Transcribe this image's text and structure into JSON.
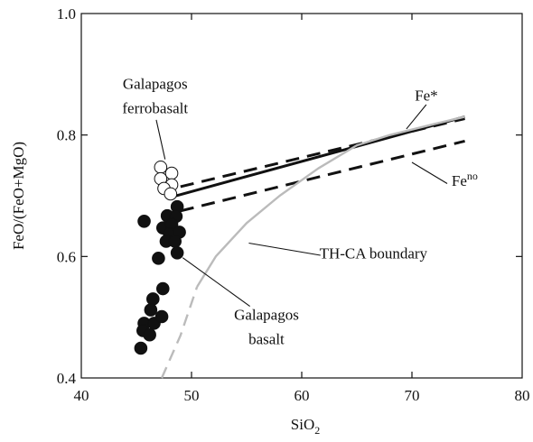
{
  "chart_data": {
    "type": "scatter",
    "title": "",
    "xlabel_base": "SiO",
    "xlabel_sub": "2",
    "ylabel": "FeO/(FeO+MgO)",
    "xlim": [
      40,
      80
    ],
    "ylim": [
      0.4,
      1.0
    ],
    "xticks": [
      40,
      50,
      60,
      70,
      80
    ],
    "yticks": [
      0.4,
      0.6,
      0.8,
      1.0
    ],
    "xtick_labels": [
      "40",
      "50",
      "60",
      "70",
      "80"
    ],
    "ytick_labels": [
      "0.4",
      "0.6",
      "0.8",
      "1.0"
    ],
    "grid": false,
    "series": [
      {
        "name": "Galapagos ferrobasalt",
        "marker": "open-circle",
        "color": "#111111",
        "points": [
          [
            47.2,
            0.747
          ],
          [
            48.2,
            0.737
          ],
          [
            47.2,
            0.728
          ],
          [
            48.2,
            0.718
          ],
          [
            47.5,
            0.712
          ],
          [
            48.1,
            0.703
          ]
        ]
      },
      {
        "name": "Galapagos basalt",
        "marker": "filled-circle",
        "color": "#111111",
        "points": [
          [
            45.7,
            0.658
          ],
          [
            47.8,
            0.667
          ],
          [
            48.7,
            0.682
          ],
          [
            48.6,
            0.666
          ],
          [
            47.4,
            0.647
          ],
          [
            48.2,
            0.653
          ],
          [
            48.0,
            0.637
          ],
          [
            48.9,
            0.64
          ],
          [
            47.7,
            0.625
          ],
          [
            48.5,
            0.625
          ],
          [
            48.7,
            0.606
          ],
          [
            47.0,
            0.597
          ],
          [
            47.4,
            0.547
          ],
          [
            46.5,
            0.53
          ],
          [
            46.3,
            0.512
          ],
          [
            45.7,
            0.49
          ],
          [
            46.6,
            0.49
          ],
          [
            45.6,
            0.478
          ],
          [
            46.2,
            0.471
          ],
          [
            47.3,
            0.501
          ],
          [
            45.4,
            0.449
          ]
        ]
      }
    ],
    "lines": [
      {
        "name": "Fe*",
        "style": "solid",
        "color": "#111111",
        "points": [
          [
            48.0,
            0.697
          ],
          [
            74.8,
            0.83
          ]
        ]
      },
      {
        "name": "Fe*-upper-dashed",
        "style": "dashed",
        "color": "#111111",
        "points": [
          [
            49.0,
            0.715
          ],
          [
            74.8,
            0.827
          ]
        ]
      },
      {
        "name": "Fe-no",
        "style": "dashed",
        "color": "#111111",
        "points": [
          [
            49.0,
            0.675
          ],
          [
            74.8,
            0.79
          ]
        ]
      },
      {
        "name": "TH-CA boundary",
        "style": "solid",
        "color": "#bbbbbb",
        "points": [
          [
            50.5,
            0.55
          ],
          [
            52.2,
            0.6
          ],
          [
            55.0,
            0.655
          ],
          [
            58.0,
            0.7
          ],
          [
            61.5,
            0.745
          ],
          [
            65.0,
            0.783
          ],
          [
            68.0,
            0.8
          ],
          [
            72.0,
            0.818
          ],
          [
            74.8,
            0.83
          ]
        ]
      },
      {
        "name": "TH-CA boundary extension",
        "style": "dashed",
        "color": "#bbbbbb",
        "points": [
          [
            47.3,
            0.4
          ],
          [
            49.0,
            0.47
          ],
          [
            50.5,
            0.55
          ]
        ]
      }
    ],
    "annotations": [
      {
        "id": "ferrobasalt-line1",
        "text": "Galapagos",
        "x": 46.7,
        "y": 0.876
      },
      {
        "id": "ferrobasalt-line2",
        "text": "ferrobasalt",
        "x": 46.7,
        "y": 0.836
      },
      {
        "id": "fe-star",
        "text": "Fe*",
        "x": 71.3,
        "y": 0.857
      },
      {
        "id": "th-ca",
        "text": "TH-CA boundary",
        "x": 66.5,
        "y": 0.597
      },
      {
        "id": "basalt-line1",
        "text": "Galapagos",
        "x": 56.8,
        "y": 0.496
      },
      {
        "id": "basalt-line2",
        "text": "basalt",
        "x": 56.8,
        "y": 0.456
      }
    ],
    "fe_no_label": {
      "base": "Fe",
      "sup": "no",
      "x": 73.6,
      "y": 0.716
    },
    "leaders": [
      {
        "id": "ferrobasalt-leader",
        "from": [
          46.8,
          0.825
        ],
        "to": [
          47.6,
          0.76
        ]
      },
      {
        "id": "fe-star-leader",
        "from": [
          71.3,
          0.85
        ],
        "to": [
          69.5,
          0.81
        ]
      },
      {
        "id": "fe-no-leader",
        "from": [
          73.2,
          0.72
        ],
        "to": [
          70.0,
          0.755
        ]
      },
      {
        "id": "th-ca-leader",
        "from": [
          61.7,
          0.602
        ],
        "to": [
          55.2,
          0.622
        ]
      },
      {
        "id": "basalt-leader",
        "from": [
          55.3,
          0.518
        ],
        "to": [
          49.2,
          0.598
        ]
      }
    ]
  }
}
